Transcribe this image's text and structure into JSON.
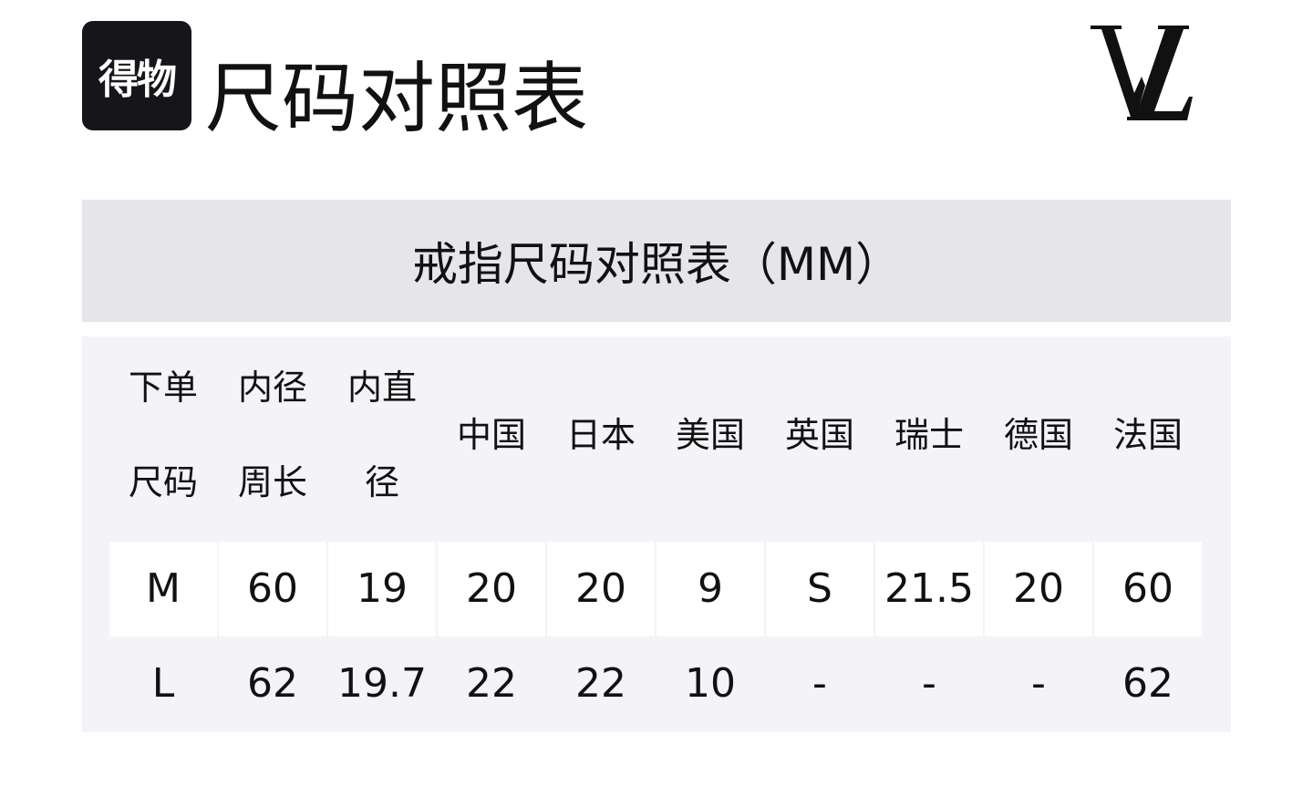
{
  "logo": {
    "text": "得物"
  },
  "title": "尺码对照表",
  "brand_logo": {
    "text": "LV"
  },
  "table_title": "戒指尺码对照表（MM）",
  "headers": [
    {
      "line1": "下单",
      "line2": "尺码"
    },
    {
      "line1": "内径",
      "line2": "周长"
    },
    {
      "line1": "内直",
      "line2": "径"
    },
    {
      "line1": "中国"
    },
    {
      "line1": "日本"
    },
    {
      "line1": "美国"
    },
    {
      "line1": "英国"
    },
    {
      "line1": "瑞士"
    },
    {
      "line1": "德国"
    },
    {
      "line1": "法国"
    }
  ],
  "rows": [
    [
      "M",
      "60",
      "19",
      "20",
      "20",
      "9",
      "S",
      "21.5",
      "20",
      "60"
    ],
    [
      "L",
      "62",
      "19.7",
      "22",
      "22",
      "10",
      "-",
      "-",
      "-",
      "62"
    ]
  ]
}
